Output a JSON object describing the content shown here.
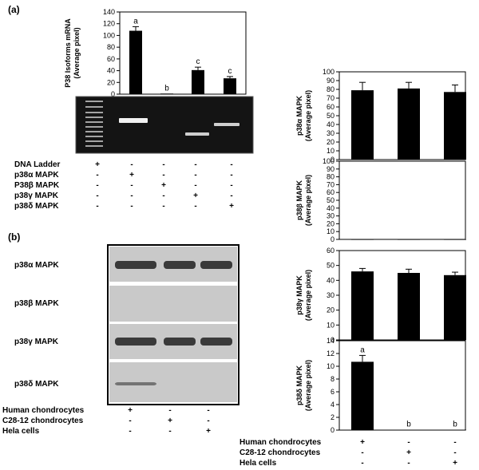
{
  "panels": {
    "a": "(a)",
    "b": "(b)"
  },
  "colors": {
    "bar": "#000000",
    "gel_bg": "#141414",
    "gel_band": "#f2f2f2",
    "blot_bg": "#c9c9c9",
    "blot_band": "#3a3a3a"
  },
  "gel": {
    "lane_rows": [
      {
        "label": "DNA Ladder",
        "signs": [
          "+",
          "-",
          "-",
          "-",
          "-"
        ]
      },
      {
        "label": "p38α MAPK",
        "signs": [
          "-",
          "+",
          "-",
          "-",
          "-"
        ]
      },
      {
        "label": "P38β MAPK",
        "signs": [
          "-",
          "-",
          "+",
          "-",
          "-"
        ]
      },
      {
        "label": "p38γ MAPK",
        "signs": [
          "-",
          "-",
          "-",
          "+",
          "-"
        ]
      },
      {
        "label": "p38δ MAPK",
        "signs": [
          "-",
          "-",
          "-",
          "-",
          "+"
        ]
      }
    ]
  },
  "blot": {
    "strips": [
      "p38α MAPK",
      "p38β MAPK",
      "p38γ MAPK",
      "p38δ MAPK"
    ],
    "band_intensity": [
      [
        1,
        1,
        1
      ],
      [
        0,
        0,
        0
      ],
      [
        1,
        1,
        1
      ],
      [
        0.6,
        0,
        0
      ]
    ]
  },
  "cells_left": [
    {
      "label": "Human chondrocytes",
      "signs": [
        "+",
        "-",
        "-"
      ]
    },
    {
      "label": "C28-12 chondrocytes",
      "signs": [
        "-",
        "+",
        "-"
      ]
    },
    {
      "label": "Hela cells",
      "signs": [
        "-",
        "-",
        "+"
      ]
    }
  ],
  "cells_right": [
    {
      "label": "Human chondrocytes",
      "signs": [
        "+",
        "-",
        "-"
      ]
    },
    {
      "label": "C28-12  chondrocytes",
      "signs": [
        "-",
        "+",
        "-"
      ]
    },
    {
      "label": "Hela cells",
      "signs": [
        "-",
        "-",
        "+"
      ]
    }
  ],
  "chart_data": [
    {
      "type": "bar",
      "ylabel": [
        "P38 Isoforms mRNA",
        "(Average pixel)"
      ],
      "categories": [
        "p38α",
        "p38β",
        "p38γ",
        "p38δ"
      ],
      "values": [
        108,
        1,
        41,
        27
      ],
      "errors": [
        7,
        0,
        5,
        3
      ],
      "sig_labels": [
        "a",
        "b",
        "c",
        "c"
      ],
      "ylim": [
        0,
        140
      ],
      "yticks": [
        0,
        20,
        40,
        60,
        80,
        100,
        120,
        140
      ]
    },
    {
      "type": "bar",
      "ylabel": [
        "p38α MAPK",
        "(Average pixel)"
      ],
      "categories": [
        "Human chondrocytes",
        "C28-12 chondrocytes",
        "Hela cells"
      ],
      "values": [
        79,
        81,
        77
      ],
      "errors": [
        9,
        7,
        8
      ],
      "sig_labels": [
        "",
        "",
        ""
      ],
      "ylim": [
        0,
        100
      ],
      "yticks": [
        0,
        10,
        20,
        30,
        40,
        50,
        60,
        70,
        80,
        90,
        100
      ]
    },
    {
      "type": "bar",
      "ylabel": [
        "p38β MAPK",
        "(Average pixel)"
      ],
      "categories": [
        "Human chondrocytes",
        "C28-12 chondrocytes",
        "Hela cells"
      ],
      "values": [
        0,
        0,
        0
      ],
      "errors": [
        0,
        0,
        0
      ],
      "sig_labels": [
        "",
        "",
        ""
      ],
      "ylim": [
        0,
        100
      ],
      "yticks": [
        0,
        10,
        20,
        30,
        40,
        50,
        60,
        70,
        80,
        90,
        100
      ]
    },
    {
      "type": "bar",
      "ylabel": [
        "p38γ MAPK",
        "(Average pixel)"
      ],
      "categories": [
        "Human chondrocytes",
        "C28-12 chondrocytes",
        "Hela cells"
      ],
      "values": [
        46,
        45,
        43.5
      ],
      "errors": [
        2,
        2.5,
        2
      ],
      "sig_labels": [
        "",
        "",
        ""
      ],
      "ylim": [
        0,
        60
      ],
      "yticks": [
        0,
        10,
        20,
        30,
        40,
        50,
        60
      ]
    },
    {
      "type": "bar",
      "ylabel": [
        "p38δ MAPK",
        "(Average pixel)"
      ],
      "categories": [
        "Human chondrocytes",
        "C28-12 chondrocytes",
        "Hela cells"
      ],
      "values": [
        10.7,
        0.05,
        0.05
      ],
      "errors": [
        1,
        0,
        0
      ],
      "sig_labels": [
        "a",
        "b",
        "b"
      ],
      "ylim": [
        0,
        14
      ],
      "yticks": [
        0,
        2,
        4,
        6,
        8,
        10,
        12,
        14
      ]
    }
  ]
}
